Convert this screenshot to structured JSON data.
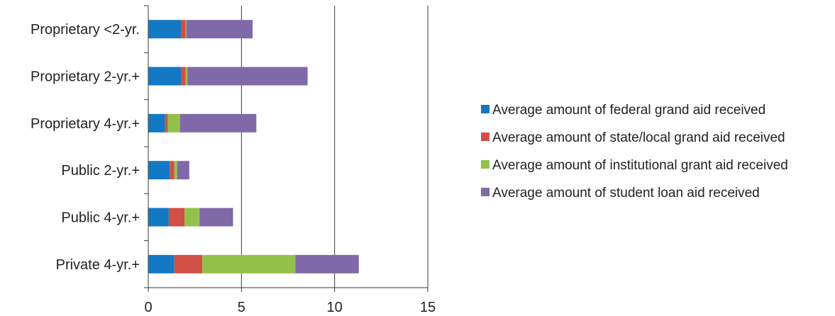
{
  "chart_data": {
    "type": "bar",
    "orientation": "horizontal",
    "stacked": true,
    "categories": [
      "Proprietary <2-yr.",
      "Proprietary 2-yr.+",
      "Proprietary 4-yr.+",
      "Public 2-yr.+",
      "Public 4-yr.+",
      "Private 4-yr.+"
    ],
    "series": [
      {
        "name": "Average amount of federal grand aid received",
        "color": "#1479c4",
        "values": [
          1.75,
          1.75,
          0.9,
          1.15,
          1.1,
          1.4
        ]
      },
      {
        "name": "Average amount of state/local grand aid received",
        "color": "#d24f45",
        "values": [
          0.25,
          0.25,
          0.15,
          0.25,
          0.85,
          1.5
        ]
      },
      {
        "name": "Average amount of institutional grant aid received",
        "color": "#92c14a",
        "values": [
          0.05,
          0.1,
          0.65,
          0.15,
          0.8,
          5.0
        ]
      },
      {
        "name": "Average amount of student loan aid received",
        "color": "#8069a8",
        "values": [
          3.55,
          6.45,
          4.1,
          0.65,
          1.8,
          3.4
        ]
      }
    ],
    "xlim": [
      0,
      15
    ],
    "x_ticks": [
      "0",
      "5",
      "10",
      "15"
    ],
    "grid": true,
    "legend_position": "right"
  }
}
